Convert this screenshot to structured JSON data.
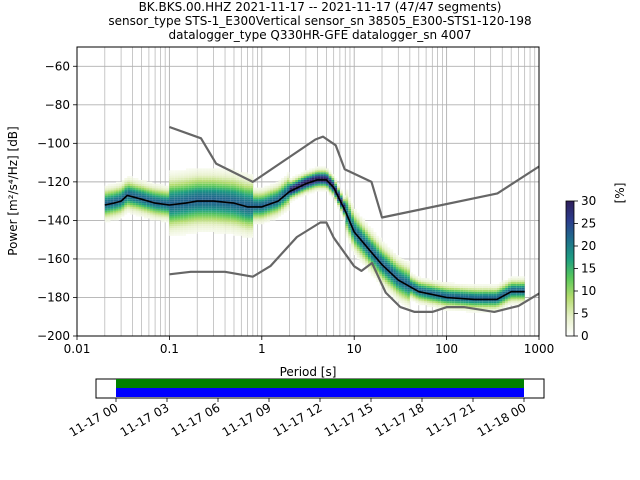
{
  "chart_data": {
    "type": "heatmap",
    "title_lines": [
      "BK.BKS.00.HHZ   2021-11-17 -- 2021-11-17  (47/47 segments)",
      "sensor_type STS-1_E300Vertical sensor_sn 38505_E300-STS1-120-198",
      "datalogger_type Q330HR-GFE datalogger_sn 4007"
    ],
    "xlabel": "Period [s]",
    "ylabel": "Power [m²/s⁴/Hz] [dB]",
    "x_scale": "log",
    "xlim": [
      0.01,
      1000
    ],
    "ylim": [
      -200,
      -50
    ],
    "x_ticks": [
      0.01,
      0.1,
      1,
      10,
      100,
      1000
    ],
    "x_tick_labels": [
      "0.01",
      "0.1",
      "1",
      "10",
      "100",
      "1000"
    ],
    "y_ticks": [
      -200,
      -180,
      -160,
      -140,
      -120,
      -100,
      -80,
      -60
    ],
    "y_tick_labels": [
      "−200",
      "−180",
      "−160",
      "−140",
      "−120",
      "−100",
      "−80",
      "−60"
    ],
    "grid": true,
    "colorbar": {
      "label": "[%]",
      "range": [
        0,
        30
      ],
      "ticks": [
        0,
        5,
        10,
        15,
        20,
        25,
        30
      ],
      "colormap": [
        "#ffffff",
        "#e6f0c8",
        "#b4dc6e",
        "#5ac85a",
        "#1e9e82",
        "#1f6e8c",
        "#2c3c8c",
        "#2e1e5a"
      ]
    },
    "series": [
      {
        "name": "New High Noise Model",
        "color": "#666666",
        "x": [
          0.1,
          0.22,
          0.32,
          0.8,
          3.8,
          4.6,
          6.3,
          7.9,
          15.4,
          20,
          354.8,
          1000
        ],
        "y": [
          -91.5,
          -97.4,
          -110.5,
          -120,
          -98,
          -96.5,
          -101,
          -113.5,
          -120,
          -138.5,
          -126,
          -112
        ]
      },
      {
        "name": "New Low Noise Model",
        "color": "#666666",
        "x": [
          0.1,
          0.17,
          0.4,
          0.8,
          1.24,
          2.4,
          4.3,
          5,
          6,
          10,
          12,
          15.6,
          21.9,
          31.6,
          45,
          70,
          101,
          154,
          328,
          600,
          1000
        ],
        "y": [
          -168,
          -166.7,
          -166.7,
          -169.2,
          -163.7,
          -148.6,
          -141.1,
          -141.1,
          -149,
          -163.8,
          -166.2,
          -162.1,
          -177.5,
          -185,
          -187.5,
          -187.5,
          -185,
          -185,
          -187.5,
          -184.4,
          -178
        ]
      },
      {
        "name": "Mean PSD",
        "color": "#000000",
        "x": [
          0.02,
          0.025,
          0.03,
          0.035,
          0.05,
          0.07,
          0.1,
          0.15,
          0.2,
          0.3,
          0.5,
          0.7,
          1,
          1.5,
          2,
          3,
          4,
          5,
          6,
          8,
          10,
          15,
          20,
          30,
          50,
          100,
          200,
          350,
          500,
          700
        ],
        "y": [
          -132,
          -131,
          -130,
          -127,
          -129,
          -131,
          -132,
          -131,
          -130,
          -130,
          -131,
          -133,
          -133,
          -130,
          -125,
          -121,
          -119,
          -119,
          -123,
          -135,
          -146,
          -156,
          -163,
          -171,
          -177,
          -180,
          -181,
          -181,
          -177,
          -177
        ]
      }
    ],
    "timeline": {
      "tick_labels": [
        "11-17 00",
        "11-17 03",
        "11-17 06",
        "11-17 09",
        "11-17 12",
        "11-17 15",
        "11-17 18",
        "11-17 21",
        "11-18 00"
      ],
      "bar_colors": [
        "#008000",
        "#0000ff"
      ]
    }
  }
}
